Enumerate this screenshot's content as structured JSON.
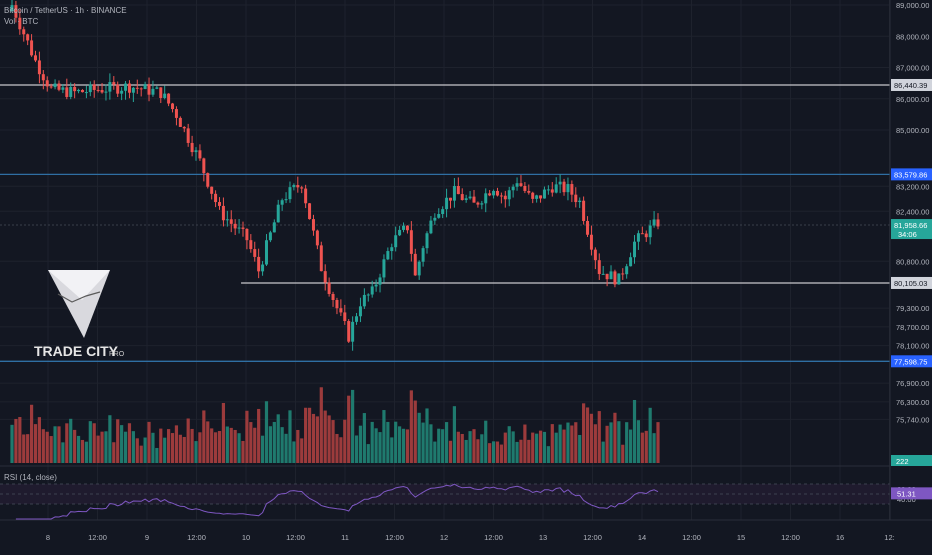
{
  "header": {
    "symbol_line": "Bitcoin / TetherUS · 1h · BINANCE",
    "vol_label": "Vol · BTC"
  },
  "logo": {
    "text_main": "TRADE CITY",
    "text_sub": "PRO"
  },
  "colors": {
    "background": "#131722",
    "up": "#26a69a",
    "down": "#ef5350",
    "vol_up": "#1f7a6e",
    "vol_down": "#9c3b3c",
    "grid": "#1e222d",
    "axis_text": "#b2b5be",
    "white_line": "#c7c7cc",
    "blue_line": "#2f6fa3",
    "rsi_line": "#7e57c2",
    "rsi_band": "#1f1b2e"
  },
  "chart_data": [
    {
      "type": "candlestick",
      "title": "Bitcoin / TetherUS · 1h · BINANCE",
      "y_axis_labels": [
        "89,000.00",
        "88,000.00",
        "87,000.00",
        "86,000.00",
        "85,000.00",
        "83,200.00",
        "82,400.00",
        "80,800.00",
        "79,300.00",
        "78,700.00",
        "78,100.00",
        "76,900.00",
        "76,300.00",
        "75,740.00"
      ],
      "x_axis_labels": [
        "8",
        "12:00",
        "9",
        "12:00",
        "10",
        "12:00",
        "11",
        "12:00",
        "12",
        "12:00",
        "13",
        "12:00",
        "14",
        "12:00",
        "15",
        "12:00",
        "16",
        "12:"
      ],
      "horizontal_levels": [
        {
          "value": 86440.39,
          "label": "86,440.39",
          "style": "white"
        },
        {
          "value": 83579.86,
          "label": "83,579.86",
          "style": "blue"
        },
        {
          "value": 80105.03,
          "label": "80,105.03",
          "style": "white",
          "start_day": 9.95
        },
        {
          "value": 77598.75,
          "label": "77,598.75",
          "style": "blue"
        }
      ],
      "last_price": {
        "value": 81958.66,
        "label": "81,958.66",
        "countdown": "34:06"
      },
      "waypoints": [
        [
          0,
          89000
        ],
        [
          6,
          87200
        ],
        [
          10,
          86300
        ],
        [
          16,
          86200
        ],
        [
          22,
          86300
        ],
        [
          30,
          86400
        ],
        [
          38,
          86200
        ],
        [
          42,
          85500
        ],
        [
          48,
          84000
        ],
        [
          53,
          82400
        ],
        [
          60,
          81500
        ],
        [
          63,
          80500
        ],
        [
          69,
          82800
        ],
        [
          74,
          83300
        ],
        [
          79,
          80600
        ],
        [
          83,
          79300
        ],
        [
          86,
          78400
        ],
        [
          89,
          79500
        ],
        [
          92,
          79800
        ],
        [
          97,
          81400
        ],
        [
          101,
          81900
        ],
        [
          103,
          80300
        ],
        [
          105,
          81300
        ],
        [
          108,
          82400
        ],
        [
          113,
          83000
        ],
        [
          118,
          82600
        ],
        [
          123,
          83200
        ],
        [
          126,
          82800
        ],
        [
          129,
          83400
        ],
        [
          133,
          82700
        ],
        [
          138,
          83200
        ],
        [
          142,
          83100
        ],
        [
          145,
          82700
        ],
        [
          150,
          80500
        ],
        [
          155,
          80200
        ],
        [
          159,
          81400
        ],
        [
          165,
          82050
        ]
      ]
    },
    {
      "type": "bar",
      "title": "Vol · BTC",
      "last_volume_label": "222"
    },
    {
      "type": "line",
      "title": "RSI (14, close)",
      "y_axis_labels": [
        "60.00",
        "40.00"
      ],
      "last_value_label": "51.31",
      "band": [
        30,
        70
      ]
    }
  ]
}
